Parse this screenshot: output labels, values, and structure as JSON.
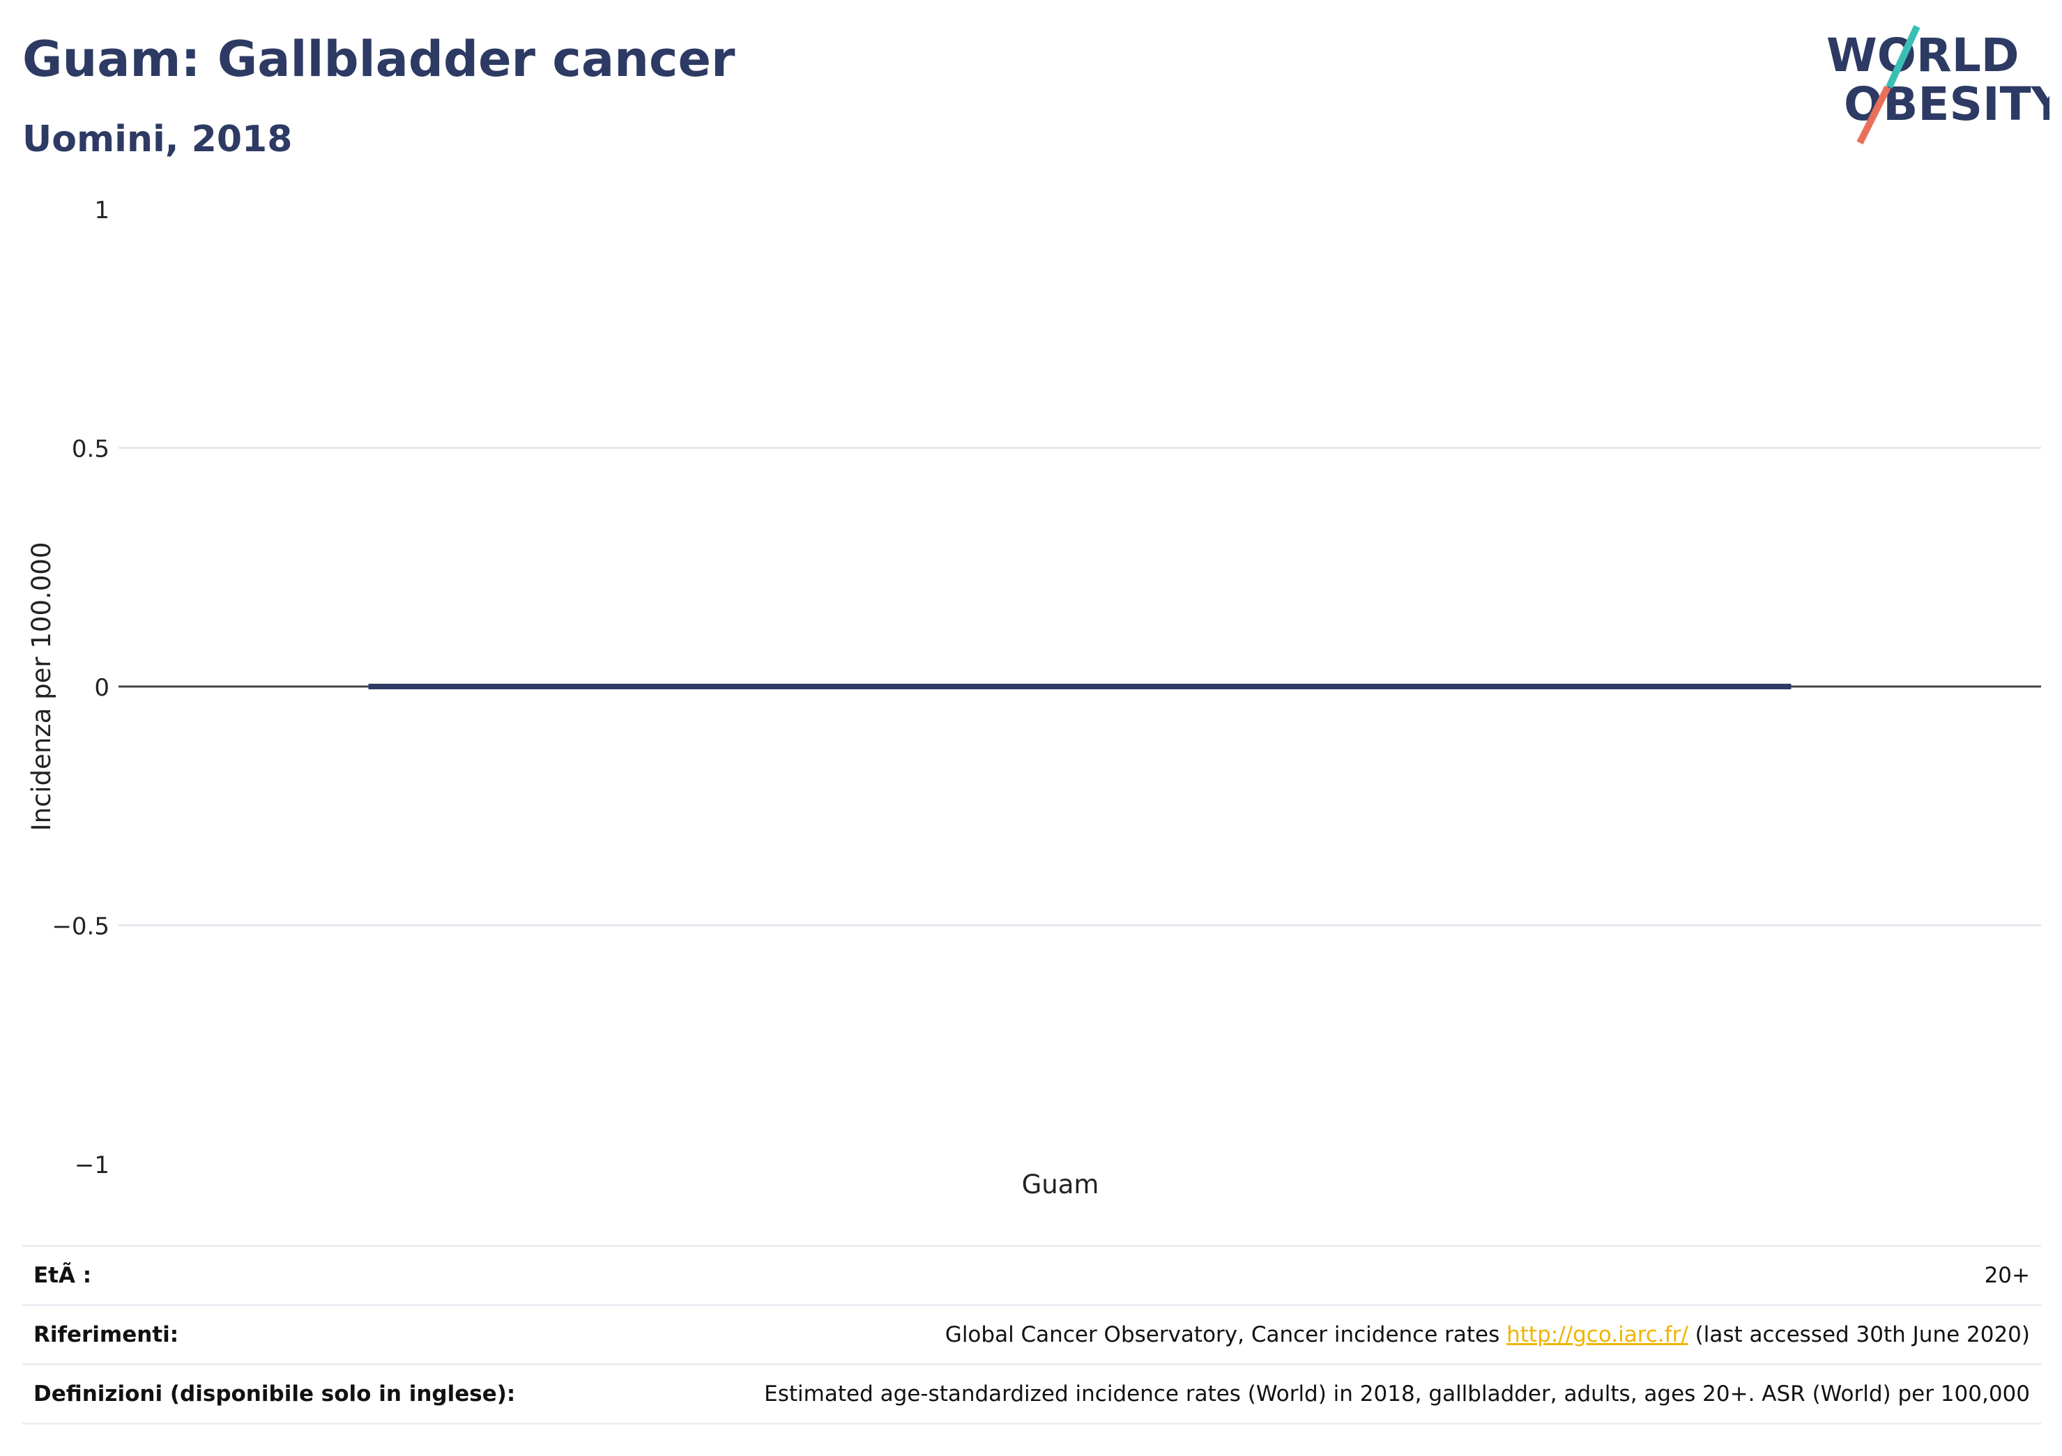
{
  "header": {
    "title": "Guam: Gallbladder cancer",
    "subtitle": "Uomini, 2018",
    "logo": {
      "line1": "WORLD",
      "line2": "OBESITY",
      "accent_teal": "#3bbfb5",
      "accent_coral": "#e8705a",
      "text_color": "#2d3a63"
    }
  },
  "chart_data": {
    "type": "bar",
    "categories": [
      "Guam"
    ],
    "series": [
      {
        "values": [
          0
        ]
      }
    ],
    "ylabel": "Incidenza per 100.000",
    "xlabel": "",
    "ylim": [
      -1,
      1
    ],
    "yticks": [
      1,
      0.5,
      0,
      -0.5,
      -1
    ],
    "ytick_labels": [
      "1",
      "0.5",
      "0",
      "−0.5",
      "−1"
    ],
    "grid": true,
    "bar_color": "#2d3a63"
  },
  "meta": {
    "age_label": "EtÃ :",
    "age_value": "20+",
    "ref_label": "Riferimenti:",
    "ref_text_before": "Global Cancer Observatory, Cancer incidence rates ",
    "ref_link": "http://gco.iarc.fr/",
    "ref_text_after": " (last accessed 30th June 2020)",
    "def_label": "Definizioni (disponibile solo in inglese):",
    "def_value": "Estimated age-standardized incidence rates (World) in 2018, gallbladder, adults, ages 20+. ASR (World) per 100,000"
  }
}
